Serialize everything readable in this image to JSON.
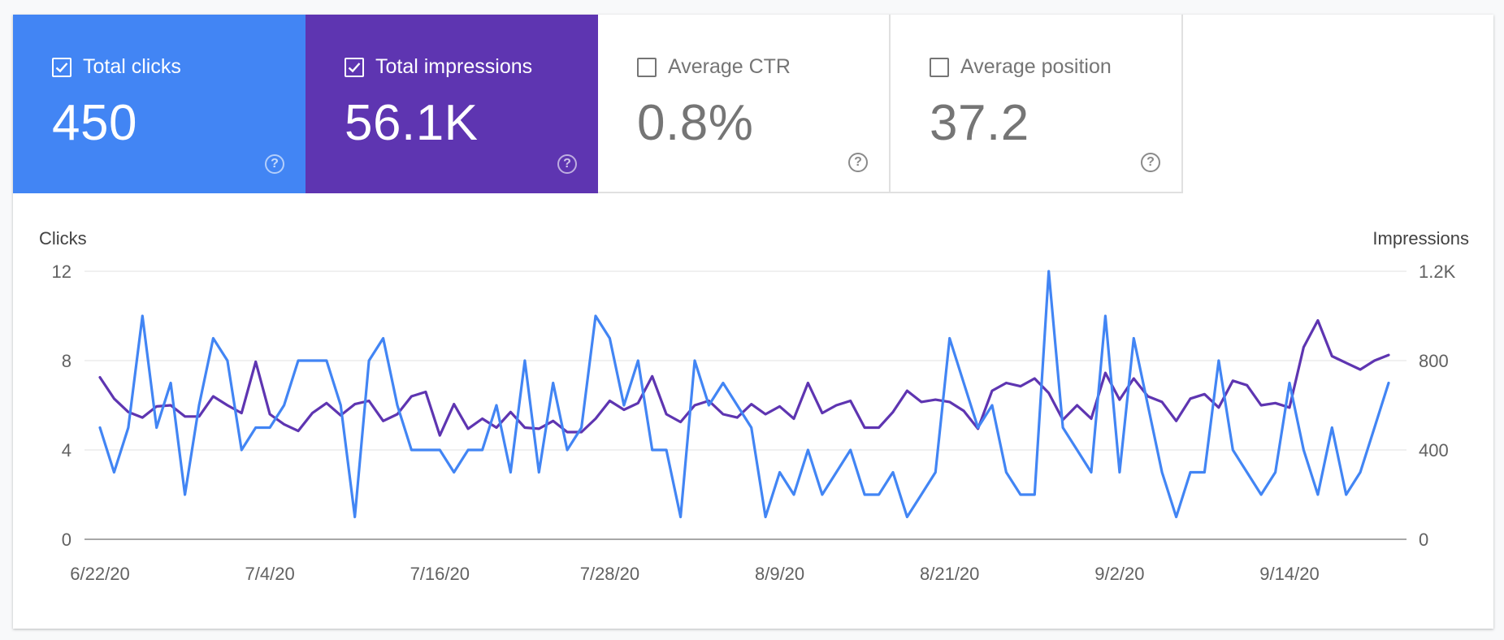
{
  "cards": [
    {
      "label": "Total clicks",
      "value": "450",
      "checked": true,
      "color": "#4285f4"
    },
    {
      "label": "Total impressions",
      "value": "56.1K",
      "checked": true,
      "color": "#5e35b1"
    },
    {
      "label": "Average CTR",
      "value": "0.8%",
      "checked": false,
      "color": "#ffffff"
    },
    {
      "label": "Average position",
      "value": "37.2",
      "checked": false,
      "color": "#ffffff"
    }
  ],
  "help_glyph": "?",
  "chart_data": {
    "type": "line",
    "y_left_label": "Clicks",
    "y_right_label": "Impressions",
    "y_left_ticks": [
      "0",
      "4",
      "8",
      "12"
    ],
    "y_right_ticks": [
      "0",
      "400",
      "800",
      "1.2K"
    ],
    "ylim_left": [
      0,
      12
    ],
    "ylim_right": [
      0,
      1200
    ],
    "x_ticks": [
      {
        "index": 0,
        "label": "6/22/20"
      },
      {
        "index": 12,
        "label": "7/4/20"
      },
      {
        "index": 24,
        "label": "7/16/20"
      },
      {
        "index": 36,
        "label": "7/28/20"
      },
      {
        "index": 48,
        "label": "8/9/20"
      },
      {
        "index": 60,
        "label": "8/21/20"
      },
      {
        "index": 72,
        "label": "9/2/20"
      },
      {
        "index": 84,
        "label": "9/14/20"
      }
    ],
    "grid": true,
    "series": [
      {
        "name": "Clicks",
        "axis": "left",
        "color": "#4285f4",
        "values": [
          5,
          3,
          5,
          10,
          5,
          7,
          2,
          6,
          9,
          8,
          4,
          5,
          5,
          6,
          8,
          8,
          8,
          6,
          1,
          8,
          9,
          6,
          4,
          4,
          4,
          3,
          4,
          4,
          6,
          3,
          8,
          3,
          7,
          4,
          5,
          10,
          9,
          6,
          8,
          4,
          4,
          1,
          8,
          6,
          7,
          6,
          5,
          1,
          3,
          2,
          4,
          2,
          3,
          4,
          2,
          2,
          3,
          1,
          2,
          3,
          9,
          7,
          5,
          6,
          3,
          2,
          2,
          12,
          5,
          4,
          3,
          10,
          3,
          9,
          6,
          3,
          1,
          3,
          3,
          8,
          4,
          3,
          2,
          3,
          7,
          4,
          2,
          5,
          2,
          3,
          5,
          7
        ]
      },
      {
        "name": "Impressions",
        "axis": "right",
        "color": "#5e35b1",
        "values": [
          725,
          630,
          570,
          545,
          595,
          600,
          550,
          550,
          640,
          600,
          565,
          795,
          560,
          515,
          485,
          565,
          610,
          555,
          605,
          620,
          530,
          560,
          640,
          660,
          465,
          605,
          495,
          540,
          500,
          570,
          500,
          495,
          530,
          480,
          480,
          540,
          620,
          580,
          610,
          730,
          560,
          525,
          600,
          620,
          560,
          545,
          605,
          560,
          595,
          540,
          700,
          565,
          600,
          620,
          500,
          500,
          570,
          665,
          615,
          625,
          615,
          575,
          495,
          665,
          700,
          685,
          720,
          655,
          535,
          600,
          540,
          745,
          625,
          720,
          640,
          615,
          530,
          630,
          650,
          590,
          710,
          690,
          600,
          610,
          590,
          860,
          980,
          820,
          790,
          760,
          800,
          825
        ]
      }
    ]
  }
}
